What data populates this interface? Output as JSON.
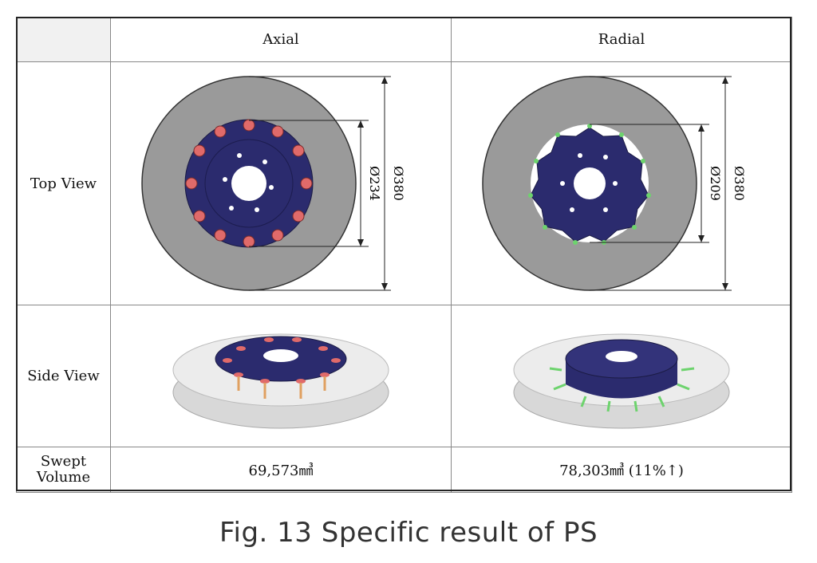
{
  "table": {
    "col_headers": [
      "Axial",
      "Radial"
    ],
    "rows": [
      {
        "label": "Top View"
      },
      {
        "label": "Side View"
      },
      {
        "label_line1": "Swept",
        "label_line2": "Volume",
        "axial_value": "69,573㎣",
        "radial_value": "78,303㎣ (11%↑)"
      }
    ]
  },
  "dimensions": {
    "axial_outer": "Ø380",
    "axial_inner": "Ø234",
    "radial_outer": "Ø380",
    "radial_inner": "Ø209"
  },
  "caption": "Fig. 13 Specific result of PS",
  "colors": {
    "disc_gray": "#9a9a9a",
    "hub_navy": "#2b2b6e",
    "bolt_red": "#e06a6a",
    "pin_green": "#6dd36d"
  }
}
